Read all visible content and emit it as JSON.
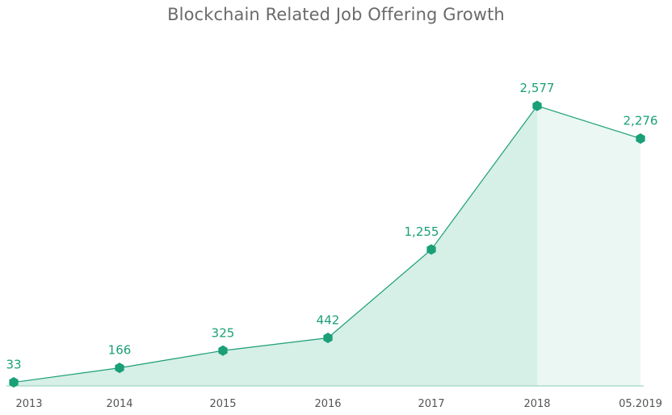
{
  "chart_data": {
    "type": "area",
    "title": "Blockchain Related Job Offering Growth",
    "xlabel": "",
    "ylabel": "",
    "categories": [
      "2013",
      "2014",
      "2015",
      "2016",
      "2017",
      "2018",
      "05.2019"
    ],
    "values": [
      33,
      166,
      325,
      442,
      1255,
      2577,
      2276
    ],
    "data_labels": [
      "33",
      "166",
      "325",
      "442",
      "1,255",
      "2,577",
      "2,276"
    ],
    "ylim": [
      0,
      2600
    ],
    "grid": false,
    "legend": "none",
    "colors": {
      "line": "#1a9f77",
      "marker": "#1a9f77",
      "area": "#d6efe7",
      "area_partial": "#eaf7f2",
      "baseline": "#9ed6c4",
      "title": "#6a6a6a",
      "tick": "#555555",
      "data_label": "#1a9f77"
    },
    "marker_shape": "hexagon"
  }
}
